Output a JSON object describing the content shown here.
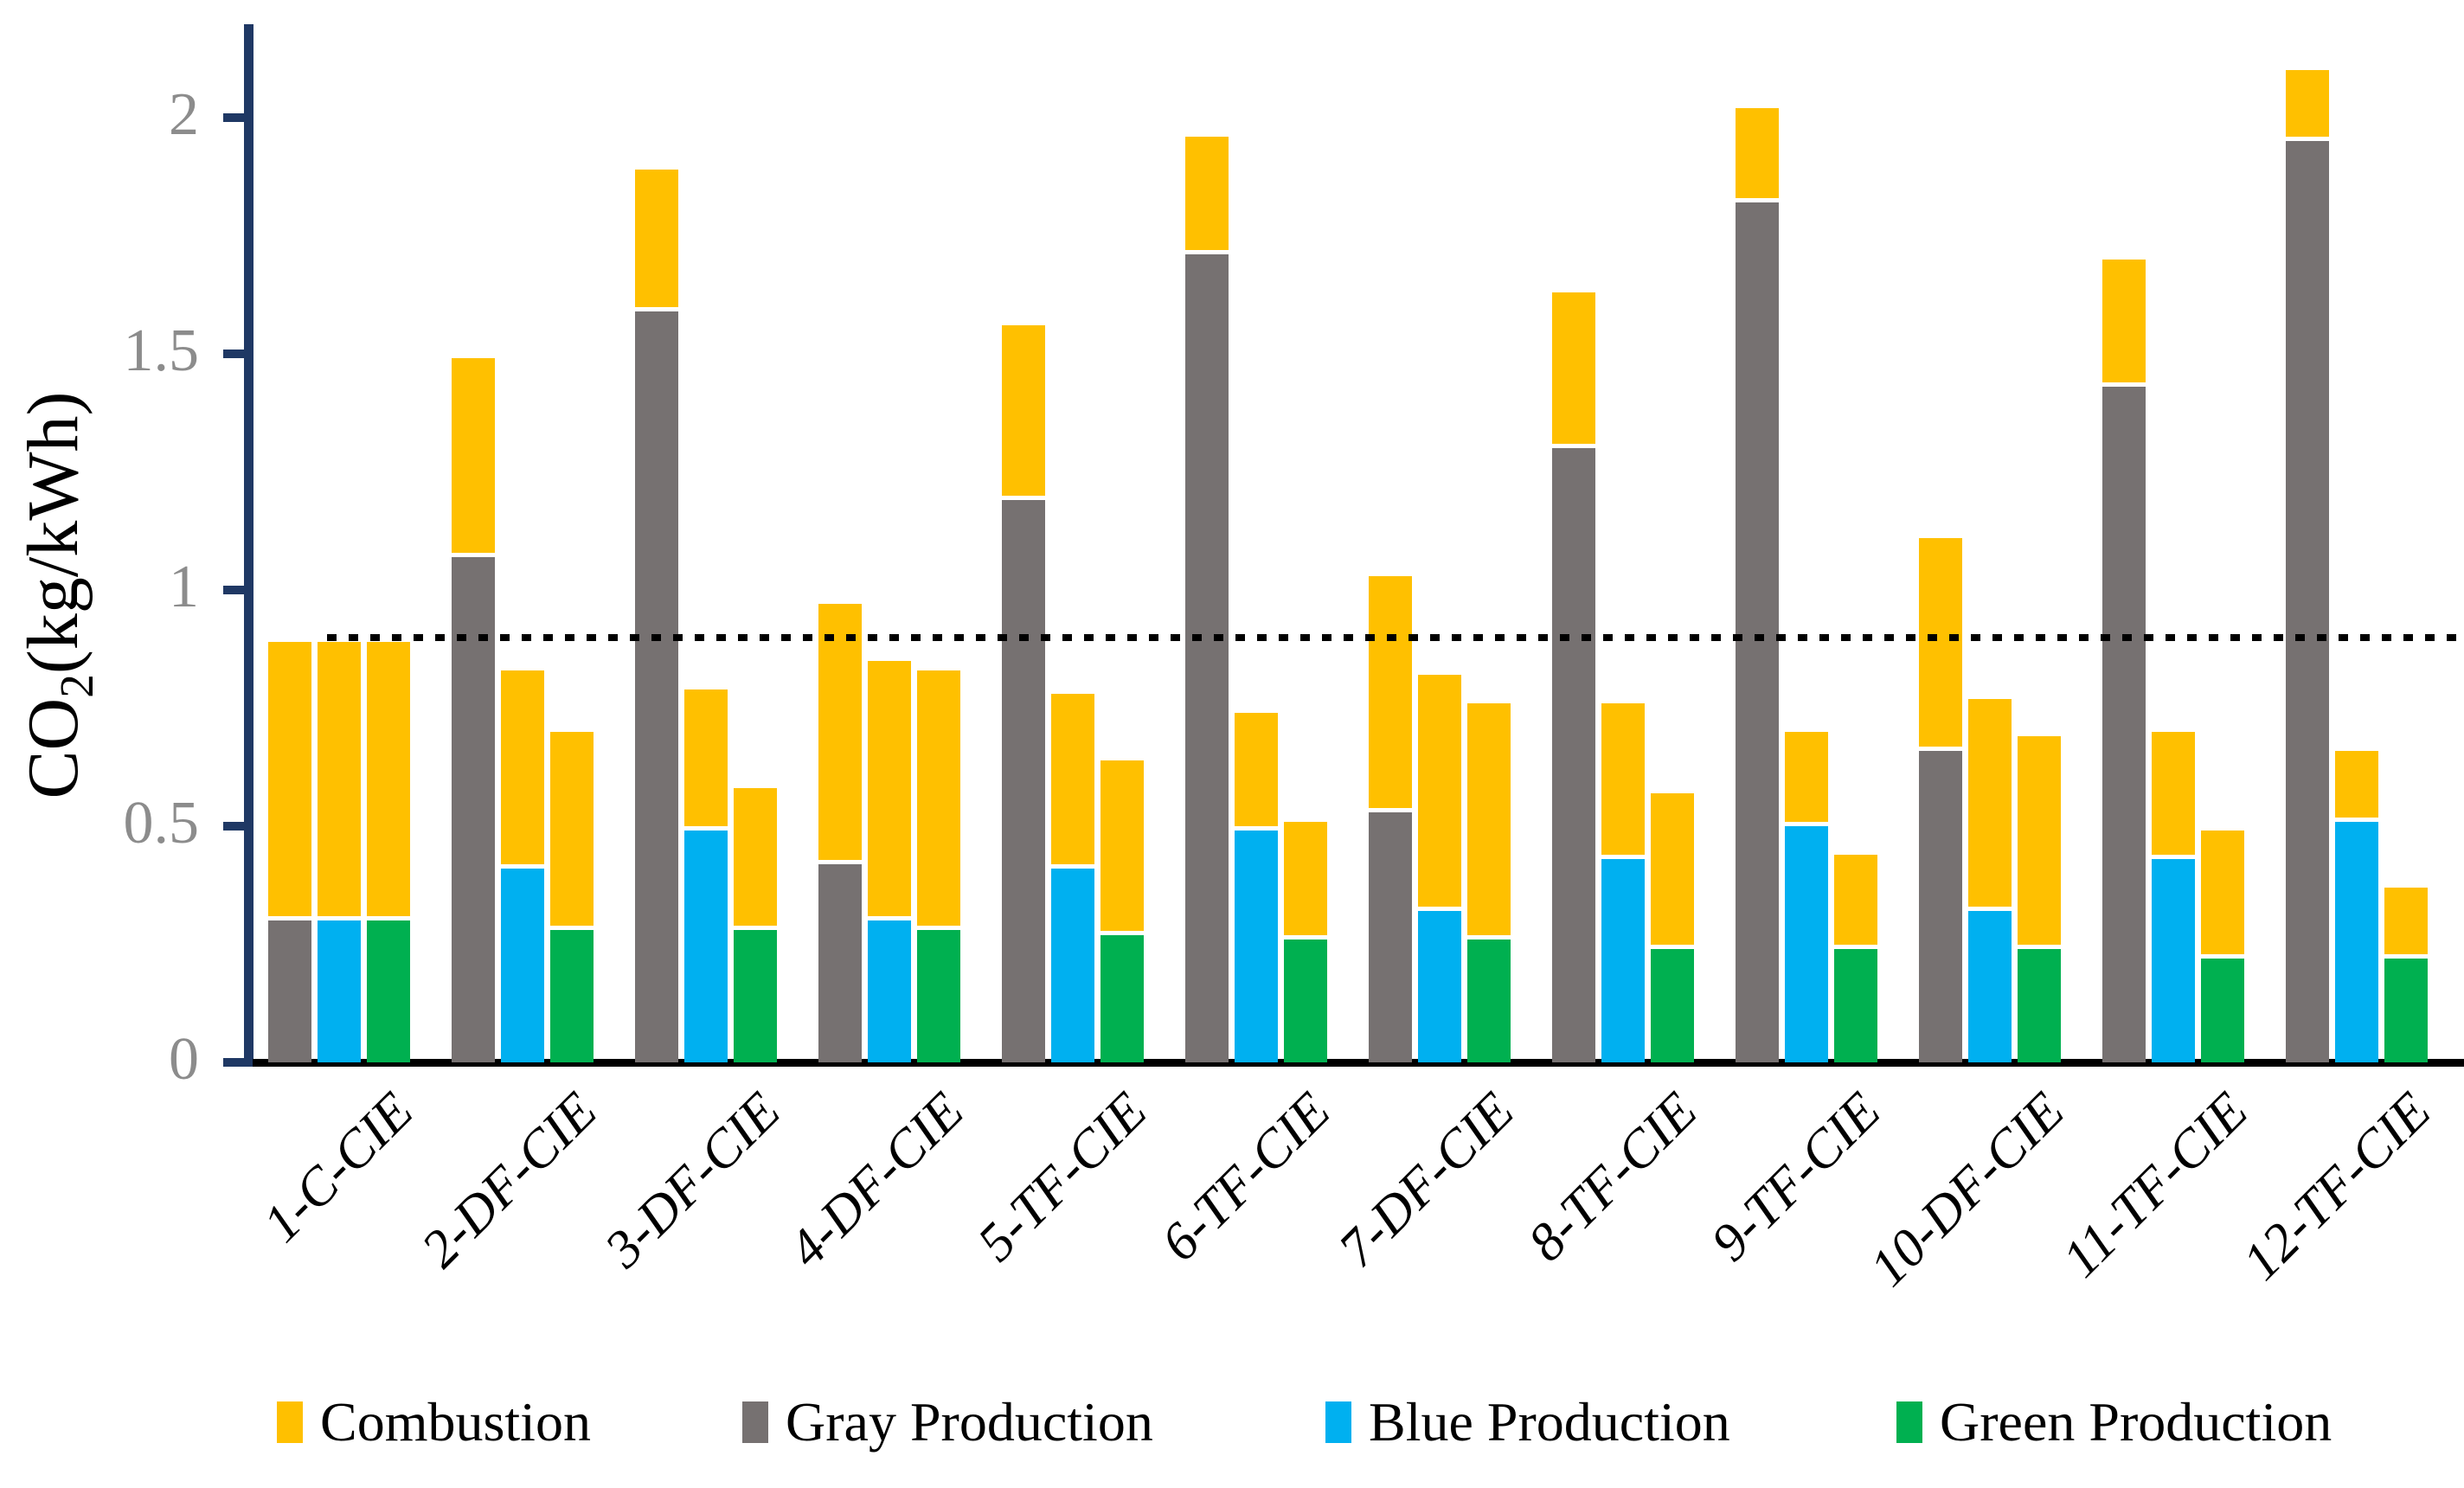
{
  "figure": {
    "background": "#ffffff",
    "y_axis": {
      "title_prefix": "CO",
      "title_sub": "2",
      "title_suffix": "(kg/kWh)",
      "tick_labels": [
        "0",
        "0.5",
        "1",
        "1.5",
        "2"
      ],
      "tick_values": [
        0,
        0.5,
        1,
        1.5,
        2
      ]
    },
    "reference_line": {
      "value": 0.9,
      "style": "dotted",
      "color": "#000000"
    },
    "legend": [
      {
        "label": "Combustion",
        "color": "#FFC000"
      },
      {
        "label": "Gray Production",
        "color": "#767171"
      },
      {
        "label": "Blue Production",
        "color": "#00B0F0"
      },
      {
        "label": "Green Production",
        "color": "#00B050"
      }
    ]
  },
  "chart_data": {
    "type": "bar",
    "stacked": true,
    "grid": false,
    "legend_position": "bottom",
    "ylim": [
      0,
      2.2
    ],
    "ylabel": "CO2(kg/kWh)",
    "xlabel": "",
    "reference_value": 0.9,
    "categories": [
      "1-C-CIE",
      "2-DF-CIE",
      "3-DF-CIE",
      "4-DF-CIE",
      "5-TF-CIE",
      "6-TF-CIE",
      "7-DF-CIE",
      "8-TF-CIE",
      "9-TF-CIE",
      "10-DF-CIE",
      "11-TF-CIE",
      "12-TF-CIE"
    ],
    "bars_per_category": [
      "gray",
      "blue",
      "green"
    ],
    "description": "Each category shows three stacked bars: a production segment (Gray/Blue/Green Production) with the same Combustion amount stacked on top of each.",
    "groups": [
      {
        "category": "1-C-CIE",
        "gray": 0.3,
        "blue": 0.3,
        "green": 0.3,
        "combustion": 0.59
      },
      {
        "category": "2-DF-CIE",
        "gray": 1.07,
        "blue": 0.41,
        "green": 0.28,
        "combustion": 0.42
      },
      {
        "category": "3-DF-CIE",
        "gray": 1.59,
        "blue": 0.49,
        "green": 0.28,
        "combustion": 0.3
      },
      {
        "category": "4-DF-CIE",
        "gray": 0.42,
        "blue": 0.3,
        "green": 0.28,
        "combustion": 0.55
      },
      {
        "category": "5-TF-CIE",
        "gray": 1.19,
        "blue": 0.41,
        "green": 0.27,
        "combustion": 0.37
      },
      {
        "category": "6-TF-CIE",
        "gray": 1.71,
        "blue": 0.49,
        "green": 0.26,
        "combustion": 0.25
      },
      {
        "category": "7-DF-CIE",
        "gray": 0.53,
        "blue": 0.32,
        "green": 0.26,
        "combustion": 0.5
      },
      {
        "category": "8-TF-CIE",
        "gray": 1.3,
        "blue": 0.43,
        "green": 0.24,
        "combustion": 0.33
      },
      {
        "category": "9-TF-CIE",
        "gray": 1.82,
        "blue": 0.5,
        "green": 0.24,
        "combustion": 0.2
      },
      {
        "category": "10-DF-CIE",
        "gray": 0.66,
        "blue": 0.32,
        "green": 0.24,
        "combustion": 0.45
      },
      {
        "category": "11-TF-CIE",
        "gray": 1.43,
        "blue": 0.43,
        "green": 0.22,
        "combustion": 0.27
      },
      {
        "category": "12-TF-CIE",
        "gray": 1.95,
        "blue": 0.51,
        "green": 0.22,
        "combustion": 0.15
      }
    ],
    "series": [
      {
        "name": "Combustion",
        "color": "#FFC000",
        "values": [
          0.59,
          0.42,
          0.3,
          0.55,
          0.37,
          0.25,
          0.5,
          0.33,
          0.2,
          0.45,
          0.27,
          0.15
        ]
      },
      {
        "name": "Gray Production",
        "color": "#767171",
        "values": [
          0.3,
          1.07,
          1.59,
          0.42,
          1.19,
          1.71,
          0.53,
          1.3,
          1.82,
          0.66,
          1.43,
          1.95
        ]
      },
      {
        "name": "Blue Production",
        "color": "#00B0F0",
        "values": [
          0.3,
          0.41,
          0.49,
          0.3,
          0.41,
          0.49,
          0.32,
          0.43,
          0.5,
          0.32,
          0.43,
          0.51
        ]
      },
      {
        "name": "Green Production",
        "color": "#00B050",
        "values": [
          0.3,
          0.28,
          0.28,
          0.28,
          0.27,
          0.26,
          0.26,
          0.24,
          0.24,
          0.24,
          0.22,
          0.22
        ]
      }
    ]
  }
}
